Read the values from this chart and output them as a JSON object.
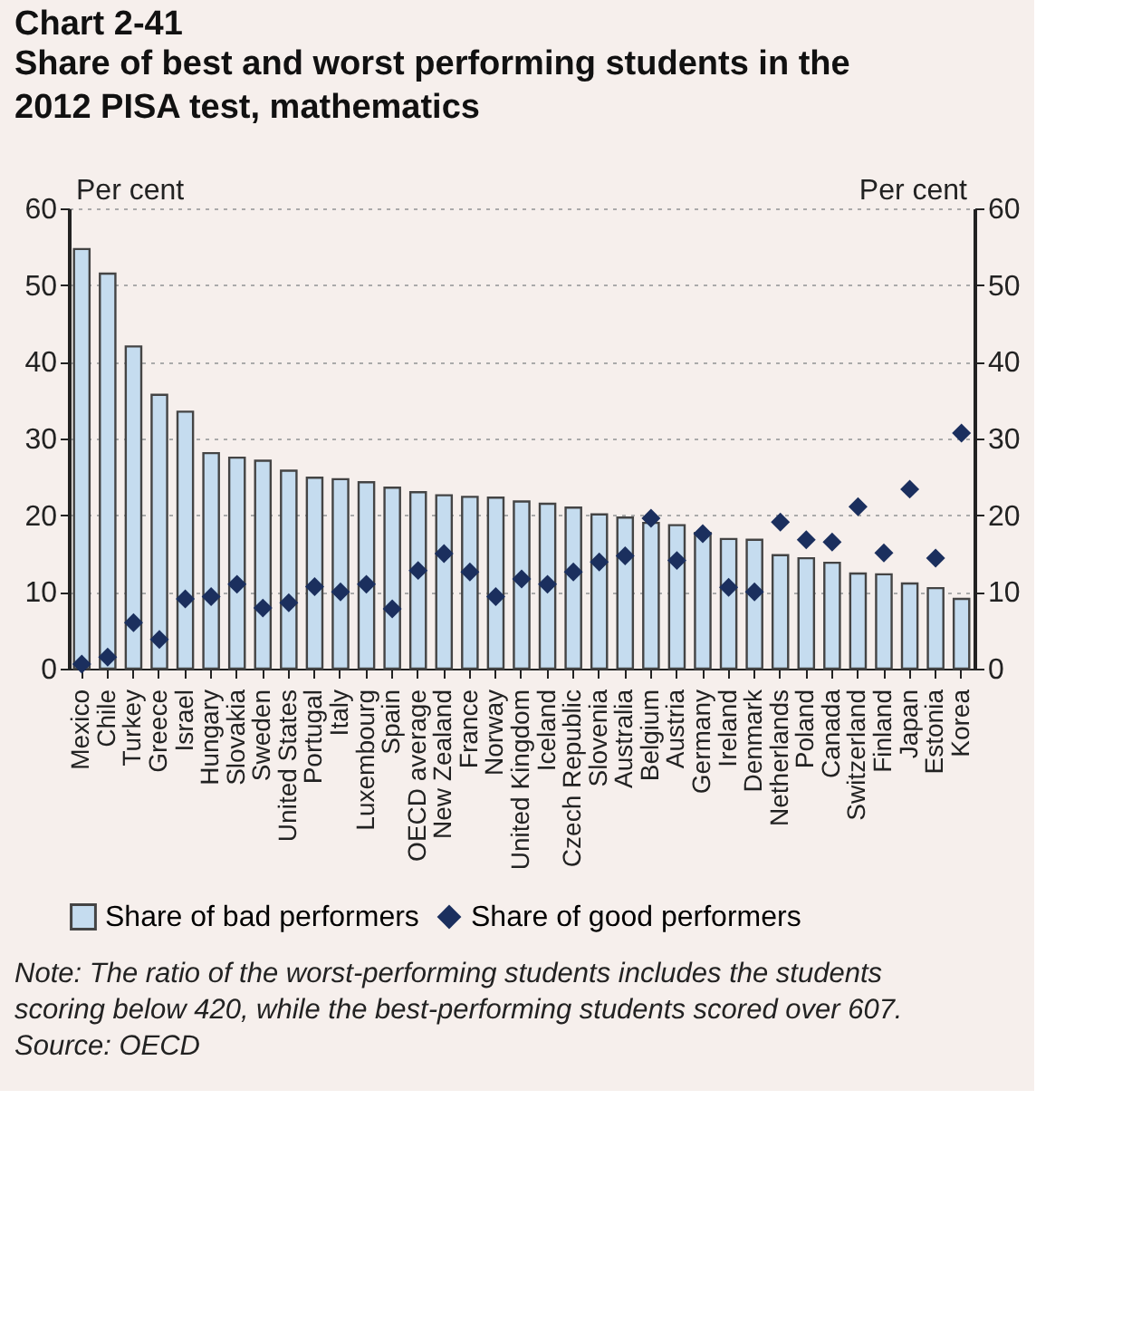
{
  "chart_data": {
    "type": "bar",
    "title": "Chart 2-41",
    "subtitle": "Share of best and worst performing students in the 2012 PISA test, mathematics",
    "ylabel": "Per cent",
    "y2label": "Per cent",
    "categories": [
      "Mexico",
      "Chile",
      "Turkey",
      "Greece",
      "Israel",
      "Hungary",
      "Slovakia",
      "Sweden",
      "United States",
      "Portugal",
      "Italy",
      "Luxembourg",
      "Spain",
      "OECD average",
      "New Zealand",
      "France",
      "Norway",
      "United Kingdom",
      "Iceland",
      "Czech Republic",
      "Slovenia",
      "Australia",
      "Belgium",
      "Austria",
      "Germany",
      "Ireland",
      "Denmark",
      "Netherlands",
      "Poland",
      "Canada",
      "Switzerland",
      "Finland",
      "Japan",
      "Estonia",
      "Korea"
    ],
    "series": [
      {
        "name": "Share of bad performers",
        "color": "#c5dcef",
        "values": [
          54.7,
          51.5,
          42.0,
          35.7,
          33.5,
          28.1,
          27.5,
          27.1,
          25.8,
          24.9,
          24.7,
          24.3,
          23.6,
          23.0,
          22.6,
          22.4,
          22.3,
          21.8,
          21.5,
          21.0,
          20.1,
          19.7,
          19.0,
          18.7,
          17.7,
          16.9,
          16.8,
          14.8,
          14.4,
          13.8,
          12.4,
          12.3,
          11.1,
          10.5,
          9.1
        ]
      },
      {
        "name": "Share of good performers",
        "type": "scatter",
        "marker": "diamond",
        "color": "#1b2f5e",
        "values": [
          0.6,
          1.5,
          6.0,
          3.8,
          9.1,
          9.4,
          11.0,
          7.9,
          8.6,
          10.7,
          10.0,
          11.0,
          7.8,
          12.8,
          15.0,
          12.6,
          9.4,
          11.7,
          11.0,
          12.6,
          13.9,
          14.7,
          19.6,
          14.1,
          17.6,
          10.6,
          10.0,
          19.1,
          16.8,
          16.5,
          21.1,
          15.1,
          23.4,
          14.4,
          30.7
        ]
      }
    ],
    "ylim": [
      0,
      60
    ],
    "yticks": [
      0,
      10,
      20,
      30,
      40,
      50,
      60
    ],
    "y2lim": [
      0,
      60
    ],
    "y2ticks": [
      0,
      10,
      20,
      30,
      40,
      50,
      60
    ],
    "grid": "y",
    "legend": "bottom",
    "annotations": [
      "Note: The ratio of the worst-performing students includes the students scoring below 420, while the best-performing students scored over 607.",
      "Source: OECD"
    ]
  }
}
